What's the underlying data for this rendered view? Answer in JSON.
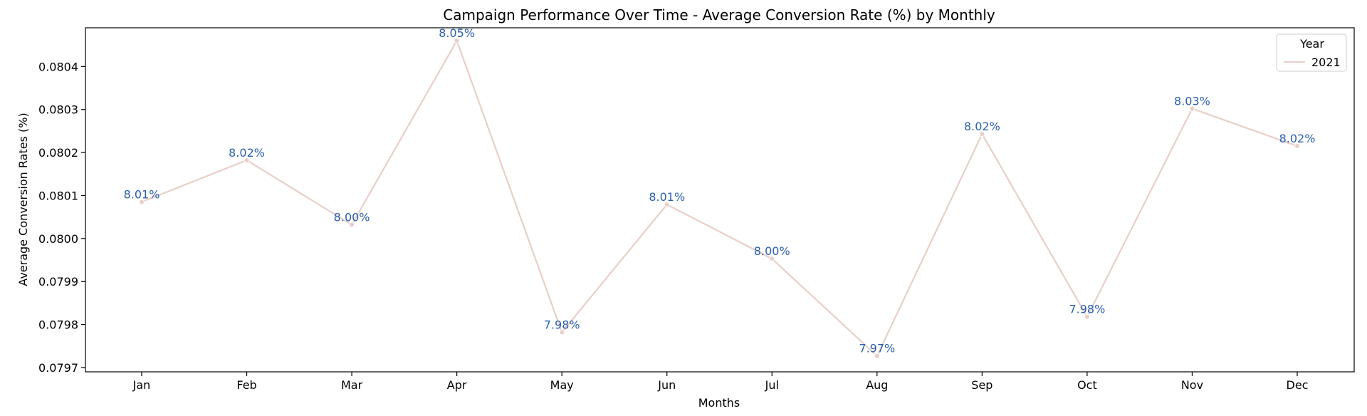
{
  "chart_data": {
    "type": "line",
    "title": "Campaign Performance Over Time - Average Conversion Rate (%) by Monthly",
    "xlabel": "Months",
    "ylabel": "Average Conversion Rates (%)",
    "categories": [
      "Jan",
      "Feb",
      "Mar",
      "Apr",
      "May",
      "Jun",
      "Jul",
      "Aug",
      "Sep",
      "Oct",
      "Nov",
      "Dec"
    ],
    "series": [
      {
        "name": "2021",
        "values": [
          0.080085,
          0.080182,
          0.080032,
          0.08046,
          0.079782,
          0.080079,
          0.079953,
          0.079727,
          0.080243,
          0.079818,
          0.080302,
          0.080215
        ],
        "point_labels": [
          "8.01%",
          "8.02%",
          "8.00%",
          "8.05%",
          "7.98%",
          "8.01%",
          "8.00%",
          "7.97%",
          "8.02%",
          "7.98%",
          "8.03%",
          "8.02%"
        ]
      }
    ],
    "ylim": [
      0.07969,
      0.08049
    ],
    "yticks": [
      0.0797,
      0.0798,
      0.0799,
      0.08,
      0.0801,
      0.0802,
      0.0803,
      0.0804
    ],
    "ytick_labels": [
      "0.0797",
      "0.0798",
      "0.0799",
      "0.0800",
      "0.0801",
      "0.0802",
      "0.0803",
      "0.0804"
    ],
    "legend": {
      "title": "Year",
      "placement": "top-right"
    },
    "grid": false,
    "colors": {
      "line": "#e8cfc7",
      "marker": "#e8cfc7",
      "label": "#2a5fb0"
    }
  }
}
